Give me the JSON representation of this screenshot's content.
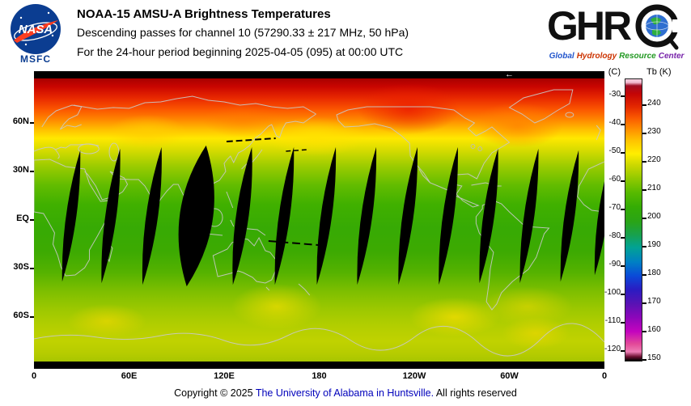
{
  "header": {
    "title": "NOAA-15 AMSU-A Brightness Temperatures",
    "subtitle": "Descending passes for channel 10 (57290.33 ± 217 MHz, 50 hPa)",
    "period": "For the 24-hour period beginning 2025-04-05 (095) at 00:00 UTC",
    "nasa": {
      "wordmark": "NASA",
      "center": "MSFC"
    },
    "ghrc": {
      "letters": "GHR",
      "tagline": [
        {
          "text": "Global",
          "color": "#2255cc"
        },
        {
          "text": "Hydrology",
          "color": "#cc3300"
        },
        {
          "text": "Resource",
          "color": "#229922"
        },
        {
          "text": "Center",
          "color": "#7722aa"
        }
      ]
    }
  },
  "axes": {
    "x_labels": [
      "0",
      "60E",
      "120E",
      "180",
      "120W",
      "60W",
      "0"
    ],
    "y_labels": [
      "60N",
      "30N",
      "EQ",
      "30S",
      "60S"
    ]
  },
  "map": {
    "marker_arrow": "←"
  },
  "colorbar": {
    "unit_left": "(C)",
    "unit_right": "Tb (K)",
    "celsius": [
      "-30",
      "-40",
      "-50",
      "-60",
      "-70",
      "-80",
      "-90",
      "-100",
      "-110",
      "-120"
    ],
    "kelvin": [
      "240",
      "230",
      "220",
      "210",
      "200",
      "190",
      "180",
      "170",
      "160",
      "150"
    ]
  },
  "footer": {
    "prefix": "Copyright © 2025",
    "link": "The University of Alabama in Huntsville.",
    "suffix": "All rights reserved"
  },
  "chart_data": {
    "type": "heatmap",
    "title": "NOAA-15 AMSU-A Brightness Temperatures",
    "subtitle": "Descending passes for channel 10 (57290.33 ± 217 MHz, 50 hPa)",
    "period": "For the 24-hour period beginning 2025-04-05 (095) at 00:00 UTC",
    "projection": "equirectangular world map, longitude from 0 eastward through 180 back to 0",
    "x_ticks": [
      "0",
      "60E",
      "120E",
      "180",
      "120W",
      "60W",
      "0"
    ],
    "y_ticks": [
      "60N",
      "30N",
      "EQ",
      "30S",
      "60S"
    ],
    "colorbar": {
      "label_right": "Tb (K)",
      "label_left": "(C)",
      "kelvin_ticks": [
        240,
        230,
        220,
        210,
        200,
        190,
        180,
        170,
        160,
        150
      ],
      "celsius_ticks": [
        -30,
        -40,
        -50,
        -60,
        -70,
        -80,
        -90,
        -100,
        -110,
        -120
      ],
      "range_K": [
        150,
        250
      ]
    },
    "approx_zonal_means_K": [
      {
        "latitude": "80N",
        "Tb_K": 244
      },
      {
        "latitude": "60N",
        "Tb_K": 226
      },
      {
        "latitude": "40N",
        "Tb_K": 215
      },
      {
        "latitude": "20N",
        "Tb_K": 211
      },
      {
        "latitude": "EQ",
        "Tb_K": 210
      },
      {
        "latitude": "20S",
        "Tb_K": 211
      },
      {
        "latitude": "40S",
        "Tb_K": 214
      },
      {
        "latitude": "60S",
        "Tb_K": 217
      },
      {
        "latitude": "80S",
        "Tb_K": 218
      }
    ],
    "data_gaps": "14 tilted black lens-shaped gaps between successive descending orbit swaths, spanning roughly 45N to 45S; widest gap near 100E"
  }
}
